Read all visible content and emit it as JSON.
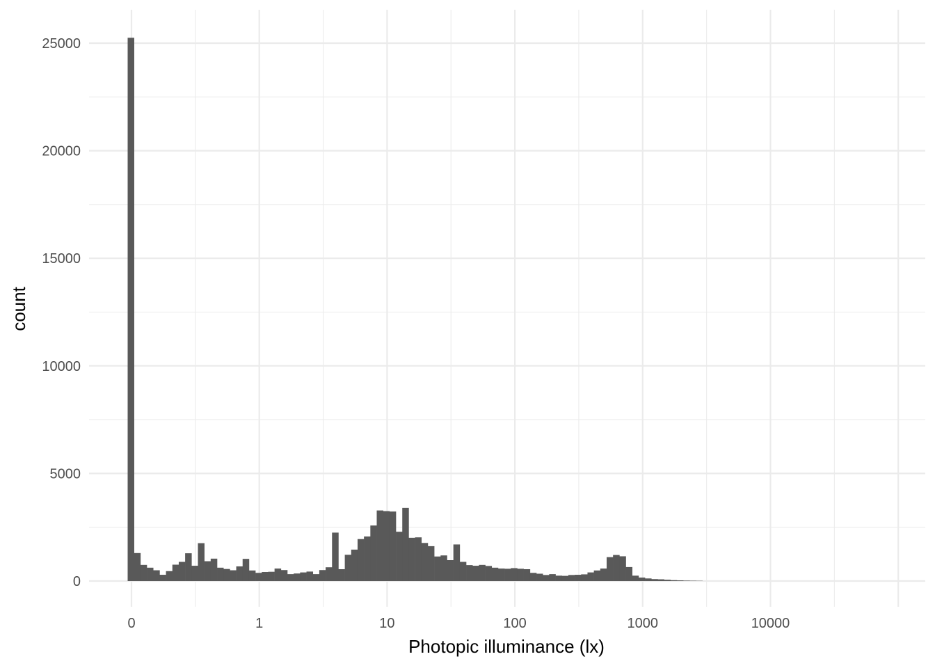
{
  "chart_data": {
    "type": "bar",
    "title": "",
    "xlabel": "Photopic illuminance (lx)",
    "ylabel": "count",
    "x_scale": "pseudo-log",
    "x_tick_labels": [
      "0",
      "1",
      "10",
      "100",
      "1000",
      "10000"
    ],
    "x_tick_values": [
      0,
      1,
      10,
      100,
      1000,
      10000
    ],
    "y_tick_labels": [
      "0",
      "5000",
      "10000",
      "15000",
      "20000",
      "25000"
    ],
    "y_tick_values": [
      0,
      5000,
      10000,
      15000,
      20000,
      25000
    ],
    "ylim": [
      0,
      25000
    ],
    "grid": true,
    "legend": "none",
    "colors": {
      "bar": "#595959",
      "grid": "#ebebeb",
      "tick_text": "#4d4d4d"
    },
    "values": [
      25250,
      1300,
      750,
      620,
      500,
      290,
      460,
      760,
      890,
      1290,
      710,
      1760,
      920,
      1040,
      620,
      560,
      500,
      680,
      1030,
      490,
      380,
      420,
      430,
      580,
      510,
      320,
      350,
      400,
      440,
      320,
      510,
      640,
      2250,
      550,
      1220,
      1460,
      1950,
      2070,
      2580,
      3280,
      3250,
      3230,
      2290,
      3400,
      2010,
      2030,
      1770,
      1620,
      1140,
      1190,
      970,
      1700,
      890,
      740,
      710,
      750,
      700,
      620,
      580,
      570,
      600,
      570,
      550,
      380,
      340,
      280,
      320,
      250,
      240,
      280,
      290,
      310,
      400,
      490,
      580,
      1110,
      1210,
      1150,
      650,
      250,
      160,
      120,
      90,
      80,
      60,
      40,
      30,
      20,
      15,
      10
    ]
  }
}
